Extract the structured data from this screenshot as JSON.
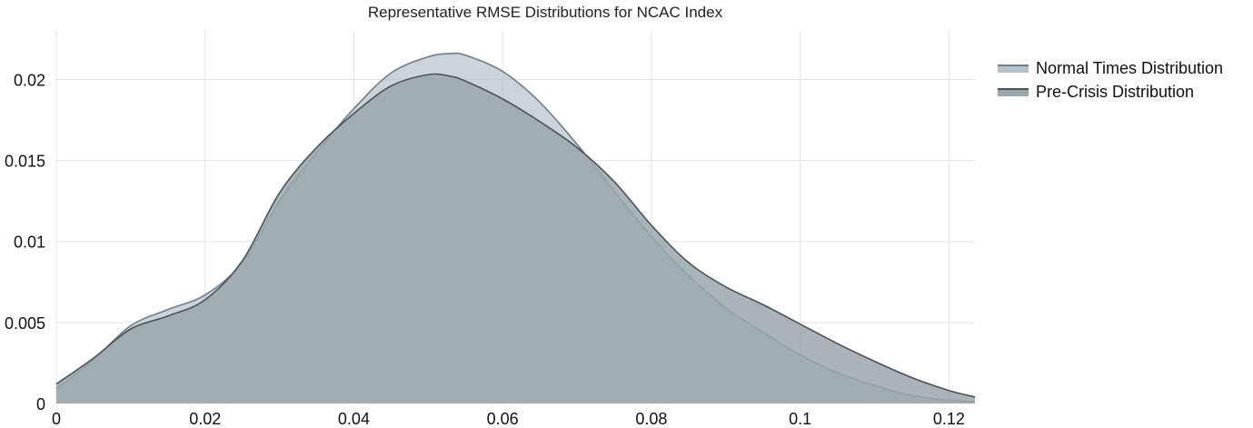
{
  "chart_data": {
    "type": "area",
    "title": "Representative RMSE Distributions for NCAC Index",
    "xlabel": "",
    "ylabel": "",
    "xlim": [
      0,
      0.1235
    ],
    "ylim": [
      0,
      0.023
    ],
    "x_ticks": [
      0,
      0.02,
      0.04,
      0.06,
      0.08,
      0.1,
      0.12
    ],
    "x_tick_labels": [
      "0",
      "0.02",
      "0.04",
      "0.06",
      "0.08",
      "0.1",
      "0.12"
    ],
    "y_ticks": [
      0,
      0.005,
      0.01,
      0.015,
      0.02
    ],
    "y_tick_labels": [
      "0",
      "0.005",
      "0.01",
      "0.015",
      "0.02"
    ],
    "grid": true,
    "legend_position": "right",
    "series": [
      {
        "name": "Normal Times Distribution",
        "fill": "#b6c2ca",
        "line": "#6f7e8a",
        "x": [
          0,
          0.005,
          0.01,
          0.015,
          0.02,
          0.025,
          0.03,
          0.035,
          0.04,
          0.045,
          0.05,
          0.053,
          0.055,
          0.06,
          0.065,
          0.07,
          0.075,
          0.08,
          0.085,
          0.09,
          0.095,
          0.1,
          0.105,
          0.11,
          0.115,
          0.12,
          0.1235
        ],
        "values": [
          0.0009,
          0.0027,
          0.0048,
          0.0058,
          0.0067,
          0.0087,
          0.0125,
          0.0155,
          0.0182,
          0.0204,
          0.0214,
          0.0216,
          0.0215,
          0.0205,
          0.0186,
          0.016,
          0.0131,
          0.0103,
          0.0079,
          0.0059,
          0.0044,
          0.003,
          0.0019,
          0.0011,
          0.0005,
          0.0002,
          0.0001
        ]
      },
      {
        "name": "Pre-Crisis Distribution",
        "fill": "#9aa6ab",
        "line": "#4a5359",
        "x": [
          0,
          0.005,
          0.01,
          0.015,
          0.02,
          0.025,
          0.03,
          0.035,
          0.04,
          0.045,
          0.05,
          0.053,
          0.055,
          0.06,
          0.065,
          0.07,
          0.075,
          0.08,
          0.085,
          0.09,
          0.095,
          0.1,
          0.105,
          0.11,
          0.115,
          0.12,
          0.1235
        ],
        "values": [
          0.0012,
          0.0028,
          0.0046,
          0.0054,
          0.0064,
          0.0088,
          0.013,
          0.0158,
          0.0179,
          0.0196,
          0.0203,
          0.0202,
          0.0199,
          0.0188,
          0.0174,
          0.0158,
          0.0137,
          0.011,
          0.0087,
          0.0072,
          0.0061,
          0.0049,
          0.0037,
          0.0026,
          0.0016,
          0.0008,
          0.0004
        ]
      }
    ]
  }
}
